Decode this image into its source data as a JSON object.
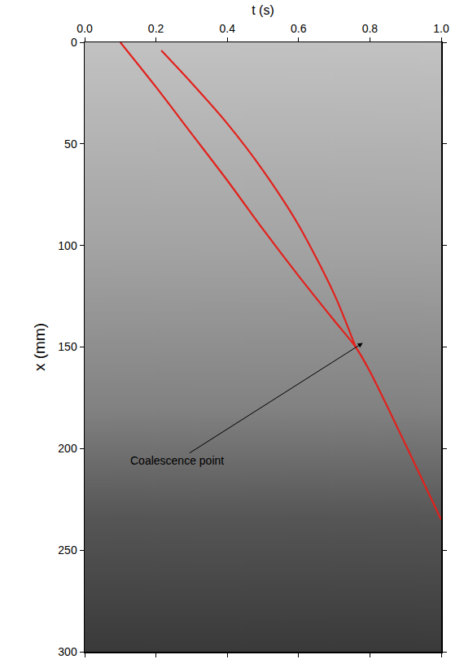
{
  "chart_data": {
    "type": "line",
    "x_label": "t (s)",
    "y_label": "x (mm)",
    "xlim": [
      0,
      1
    ],
    "ylim": [
      300,
      0
    ],
    "xticks": [
      {
        "value": 0,
        "label": "0.0"
      },
      {
        "value": 0.2,
        "label": "0.2"
      },
      {
        "value": 0.4,
        "label": "0.4"
      },
      {
        "value": 0.6,
        "label": "0.6"
      },
      {
        "value": 0.8,
        "label": "0.8"
      },
      {
        "value": 1,
        "label": "1.0"
      }
    ],
    "yticks": [
      0,
      50,
      100,
      150,
      200,
      250,
      300
    ],
    "grid": false,
    "series": [
      {
        "color": "#e3201b",
        "line_style": "solid",
        "x": [
          0.1,
          0.2,
          0.3,
          0.4,
          0.5,
          0.6,
          0.7,
          0.76,
          0.8,
          0.9,
          1.0
        ],
        "values": [
          0,
          22,
          45,
          68,
          92,
          115,
          137,
          150,
          162,
          198,
          235
        ]
      },
      {
        "color": "#e3201b",
        "line_style": "solid",
        "x": [
          0.215,
          0.3,
          0.4,
          0.5,
          0.6,
          0.7,
          0.76
        ],
        "values": [
          4,
          20,
          40,
          63,
          90,
          124,
          150
        ]
      }
    ],
    "annotations": [
      {
        "text": "Coalescence point",
        "x": 0.78,
        "y": 148,
        "ax": 0.26,
        "ay": 206
      }
    ]
  }
}
